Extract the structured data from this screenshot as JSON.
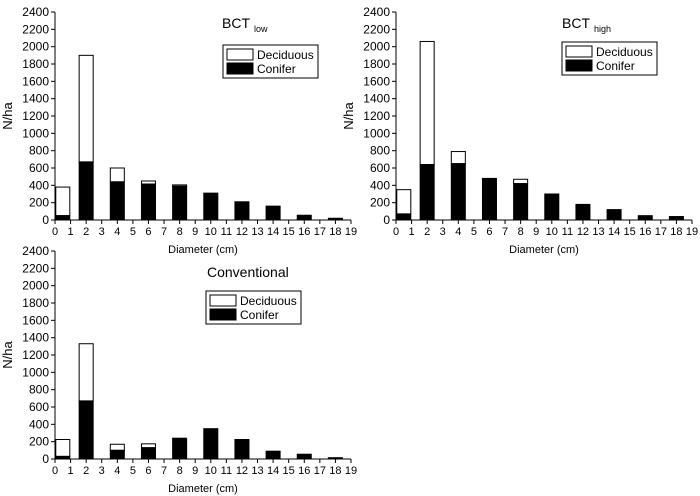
{
  "chart_data": [
    {
      "type": "bar",
      "title": "BCT",
      "title_sub": "low",
      "xlabel": "Diameter (cm)",
      "ylabel": "N/ha",
      "xlim": [
        0,
        19
      ],
      "ylim": [
        0,
        2400
      ],
      "yticks": [
        0,
        200,
        400,
        600,
        800,
        1000,
        1200,
        1400,
        1600,
        1800,
        2000,
        2200,
        2400
      ],
      "xticks": [
        0,
        1,
        2,
        3,
        4,
        5,
        6,
        7,
        8,
        9,
        10,
        11,
        12,
        13,
        14,
        15,
        16,
        17,
        18,
        19
      ],
      "bar_centers": [
        0.5,
        2,
        4,
        6,
        8,
        10,
        12,
        14,
        16,
        18
      ],
      "legend": {
        "position": "top-right",
        "entries": [
          "Deciduous",
          "Conifer"
        ]
      },
      "series": [
        {
          "name": "Conifer",
          "stack": "bottom",
          "values": [
            50,
            670,
            440,
            415,
            390,
            310,
            210,
            160,
            55,
            20
          ]
        },
        {
          "name": "Deciduous",
          "stack": "top",
          "values": [
            330,
            1230,
            160,
            35,
            15,
            0,
            0,
            0,
            0,
            0
          ]
        }
      ],
      "colors": {
        "Conifer": "#000000",
        "Deciduous": "#ffffff"
      },
      "grid": false
    },
    {
      "type": "bar",
      "title": "BCT",
      "title_sub": "high",
      "xlabel": "Diameter (cm)",
      "ylabel": "N/ha",
      "xlim": [
        0,
        19
      ],
      "ylim": [
        0,
        2400
      ],
      "yticks": [
        0,
        200,
        400,
        600,
        800,
        1000,
        1200,
        1400,
        1600,
        1800,
        2000,
        2200,
        2400
      ],
      "xticks": [
        0,
        1,
        2,
        3,
        4,
        5,
        6,
        7,
        8,
        9,
        10,
        11,
        12,
        13,
        14,
        15,
        16,
        17,
        18,
        19
      ],
      "bar_centers": [
        0.5,
        2,
        4,
        6,
        8,
        10,
        12,
        14,
        16,
        18
      ],
      "legend": {
        "position": "top-right",
        "entries": [
          "Deciduous",
          "Conifer"
        ]
      },
      "series": [
        {
          "name": "Conifer",
          "stack": "bottom",
          "values": [
            70,
            640,
            650,
            470,
            420,
            300,
            180,
            120,
            50,
            40
          ]
        },
        {
          "name": "Deciduous",
          "stack": "top",
          "values": [
            280,
            1420,
            140,
            10,
            50,
            0,
            0,
            0,
            0,
            0
          ]
        }
      ],
      "colors": {
        "Conifer": "#000000",
        "Deciduous": "#ffffff"
      },
      "grid": false
    },
    {
      "type": "bar",
      "title": "Conventional",
      "title_sub": "",
      "xlabel": "Diameter (cm)",
      "ylabel": "N/ha",
      "xlim": [
        0,
        19
      ],
      "ylim": [
        0,
        2400
      ],
      "yticks": [
        0,
        200,
        400,
        600,
        800,
        1000,
        1200,
        1400,
        1600,
        1800,
        2000,
        2200,
        2400
      ],
      "xticks": [
        0,
        1,
        2,
        3,
        4,
        5,
        6,
        7,
        8,
        9,
        10,
        11,
        12,
        13,
        14,
        15,
        16,
        17,
        18,
        19
      ],
      "bar_centers": [
        0.5,
        2,
        4,
        6,
        8,
        10,
        12,
        14,
        16,
        18
      ],
      "legend": {
        "position": "top-right",
        "entries": [
          "Deciduous",
          "Conifer"
        ]
      },
      "series": [
        {
          "name": "Conifer",
          "stack": "bottom",
          "values": [
            30,
            670,
            100,
            130,
            240,
            350,
            225,
            90,
            55,
            5
          ]
        },
        {
          "name": "Deciduous",
          "stack": "top",
          "values": [
            195,
            660,
            70,
            45,
            0,
            0,
            0,
            0,
            0,
            10
          ]
        }
      ],
      "colors": {
        "Conifer": "#000000",
        "Deciduous": "#ffffff"
      },
      "grid": false
    }
  ]
}
